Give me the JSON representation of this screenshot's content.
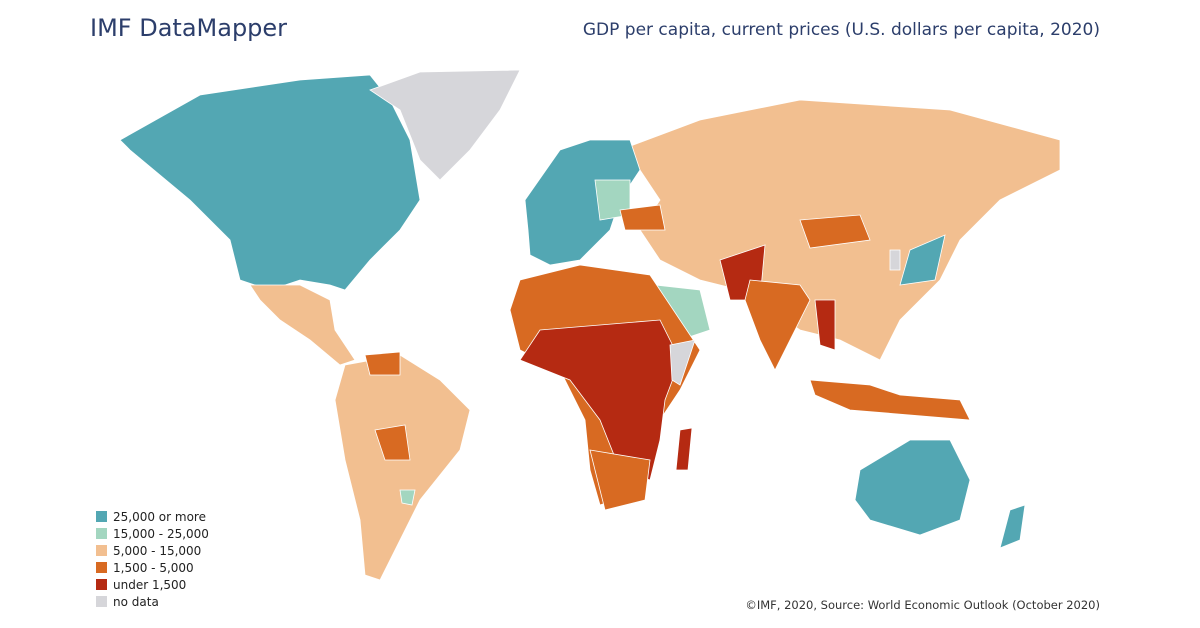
{
  "header": {
    "title": "IMF DataMapper",
    "subtitle": "GDP per capita, current prices (U.S. dollars per capita, 2020)"
  },
  "legend": [
    {
      "label": "25,000 or more",
      "color": "#53a7b3"
    },
    {
      "label": "15,000 - 25,000",
      "color": "#a3d6c0"
    },
    {
      "label": "5,000 - 15,000",
      "color": "#f2bf90"
    },
    {
      "label": "1,500 - 5,000",
      "color": "#d86a22"
    },
    {
      "label": "under 1,500",
      "color": "#b52a12"
    },
    {
      "label": "no data",
      "color": "#d6d6da"
    }
  ],
  "source": "©IMF, 2020, Source: World Economic Outlook (October 2020)"
}
